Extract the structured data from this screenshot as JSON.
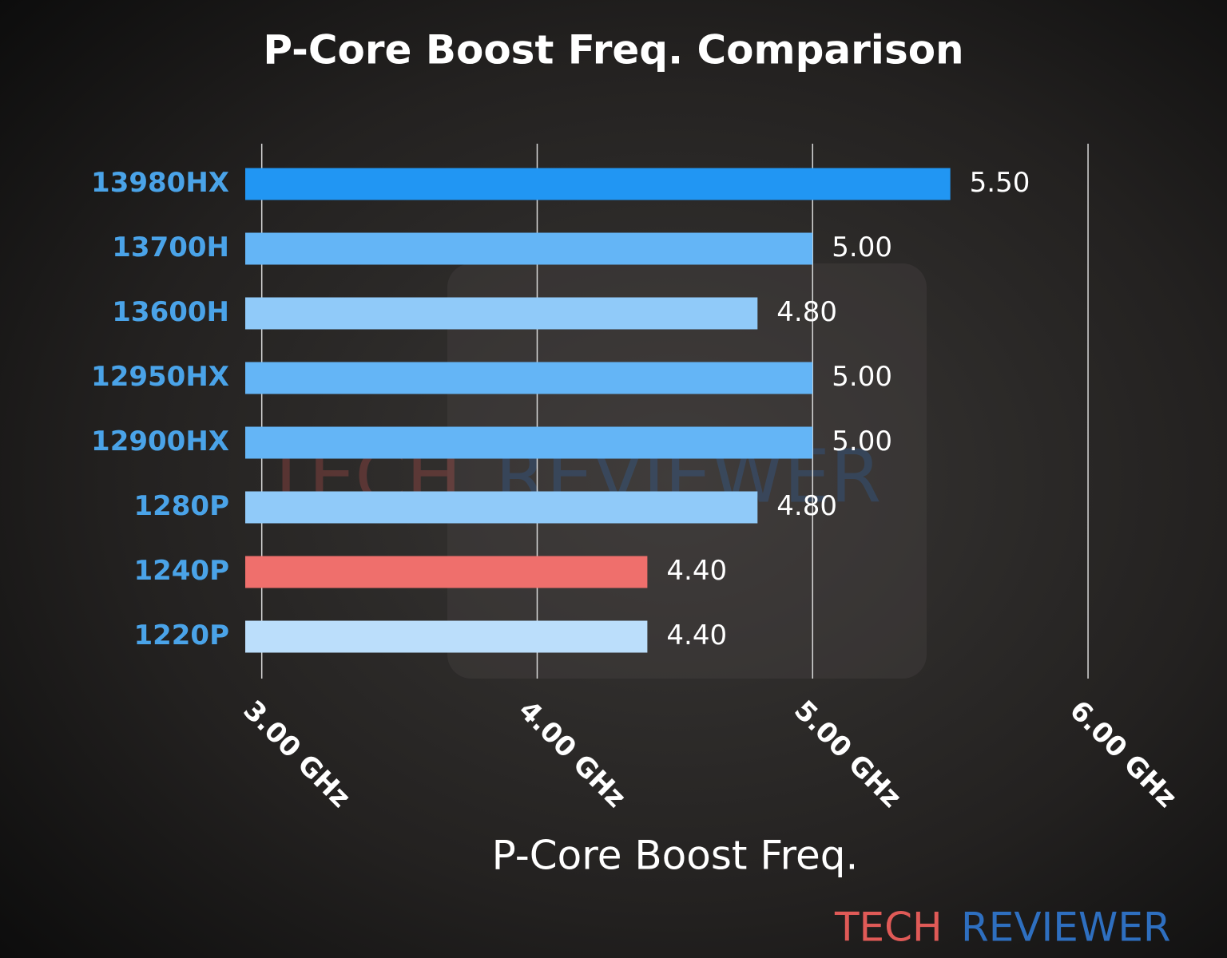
{
  "chart_data": {
    "type": "barh",
    "title": "P-Core Boost Freq. Comparison",
    "x_label": "P-Core Boost Freq.",
    "categories": [
      "13980HX",
      "13700H",
      "13600H",
      "12950HX",
      "12900HX",
      "1280P",
      "1240P",
      "1220P"
    ],
    "values": [
      5.5,
      5.0,
      4.8,
      5.0,
      5.0,
      4.8,
      4.4,
      4.4
    ],
    "value_labels": [
      "5.50",
      "5.00",
      "4.80",
      "5.00",
      "5.00",
      "4.80",
      "4.40",
      "4.40"
    ],
    "colors": [
      "#2196f3",
      "#64b5f6",
      "#90caf9",
      "#64b5f6",
      "#64b5f6",
      "#90caf9",
      "#ef6f6c",
      "#bbdefb"
    ],
    "xlim": [
      2.94,
      6.2
    ],
    "xticks": [
      {
        "value": 3,
        "label": "3.00 GHz"
      },
      {
        "value": 4,
        "label": "4.00 GHz"
      },
      {
        "value": 5,
        "label": "5.00 GHz"
      },
      {
        "value": 6,
        "label": "6.00 GHz"
      }
    ],
    "grid": true,
    "watermark": [
      "TECH",
      "REVIEWER"
    ]
  }
}
